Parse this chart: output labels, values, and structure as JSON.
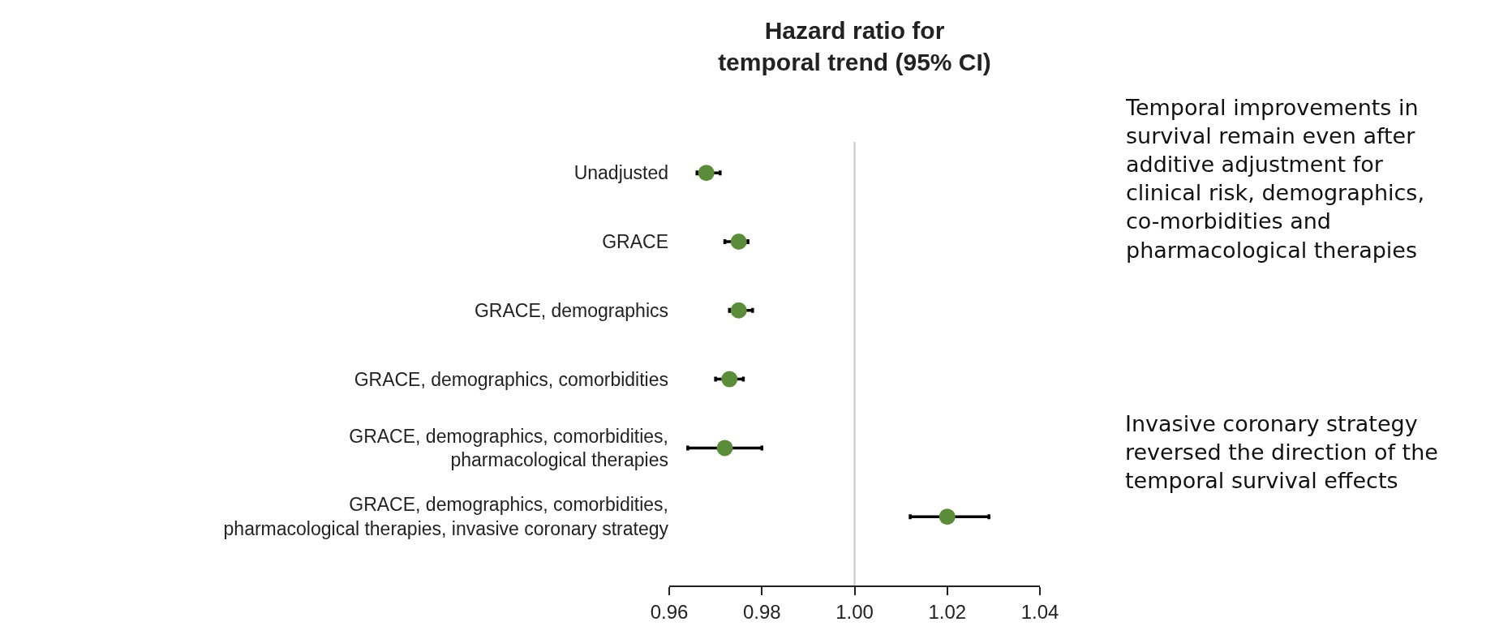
{
  "chart_data": {
    "type": "scatter",
    "orientation": "horizontal",
    "title": "Hazard ratio for\ntemporal trend (95% CI)",
    "categories": [
      "Unadjusted",
      "GRACE",
      "GRACE, demographics",
      "GRACE, demographics, comorbidities",
      "GRACE, demographics, comorbidities,\npharmacological therapies",
      "GRACE, demographics, comorbidities,\npharmacological therapies, invasive coronary strategy"
    ],
    "series": [
      {
        "color": "#5b8c3a",
        "values": [
          0.968,
          0.975,
          0.975,
          0.973,
          0.972,
          1.02
        ],
        "errors": [
          [
            0.966,
            0.971
          ],
          [
            0.972,
            0.977
          ],
          [
            0.973,
            0.978
          ],
          [
            0.97,
            0.976
          ],
          [
            0.964,
            0.98
          ],
          [
            1.012,
            1.029
          ]
        ]
      }
    ],
    "xlim": [
      0.96,
      1.04
    ],
    "xticks": [
      {
        "value": 0.96,
        "label": "0.96"
      },
      {
        "value": 0.98,
        "label": "0.98"
      },
      {
        "value": 1.0,
        "label": "1.00"
      },
      {
        "value": 1.02,
        "label": "1.02"
      },
      {
        "value": 1.04,
        "label": "1.04"
      }
    ],
    "ref_lines": [
      {
        "axis": "x",
        "value": 1.0,
        "color": "#c8c8c8"
      }
    ],
    "marker": "circle",
    "annotations": [
      "Temporal improvements in\nsurvival remain even after\nadditive adjustment for\nclinical risk, demographics,\nco-morbidities and\npharmacological therapies",
      "Invasive coronary strategy\nreversed the direction of the\ntemporal survival effects"
    ]
  }
}
